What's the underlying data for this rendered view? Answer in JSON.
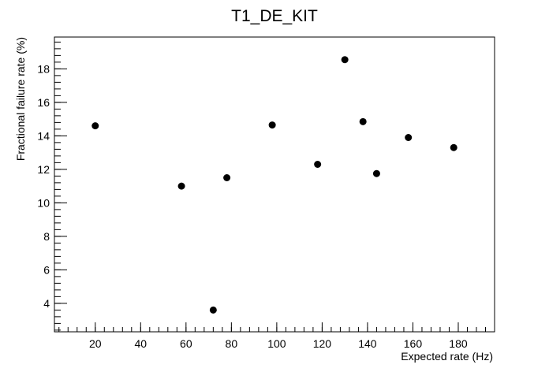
{
  "chart_data": {
    "type": "scatter",
    "title": "T1_DE_KIT",
    "xlabel": "Expected rate (Hz)",
    "ylabel": "Fractional failure rate (%)",
    "xlim": [
      2,
      196
    ],
    "ylim": [
      2.3,
      19.9
    ],
    "xticks": [
      20,
      40,
      60,
      80,
      100,
      120,
      140,
      160,
      180
    ],
    "yticks": [
      4,
      6,
      8,
      10,
      12,
      14,
      16,
      18
    ],
    "x_minor_step": 4,
    "y_minor_step": 0.4,
    "grid": false,
    "legend": "none",
    "marker_color": "#000000",
    "points": [
      {
        "x": 20,
        "y": 14.6
      },
      {
        "x": 58,
        "y": 11.0
      },
      {
        "x": 72,
        "y": 3.6
      },
      {
        "x": 78,
        "y": 11.5
      },
      {
        "x": 98,
        "y": 14.65
      },
      {
        "x": 118,
        "y": 12.3
      },
      {
        "x": 130,
        "y": 18.55
      },
      {
        "x": 138,
        "y": 14.85
      },
      {
        "x": 144,
        "y": 11.75
      },
      {
        "x": 158,
        "y": 13.9
      },
      {
        "x": 178,
        "y": 13.3
      }
    ]
  }
}
